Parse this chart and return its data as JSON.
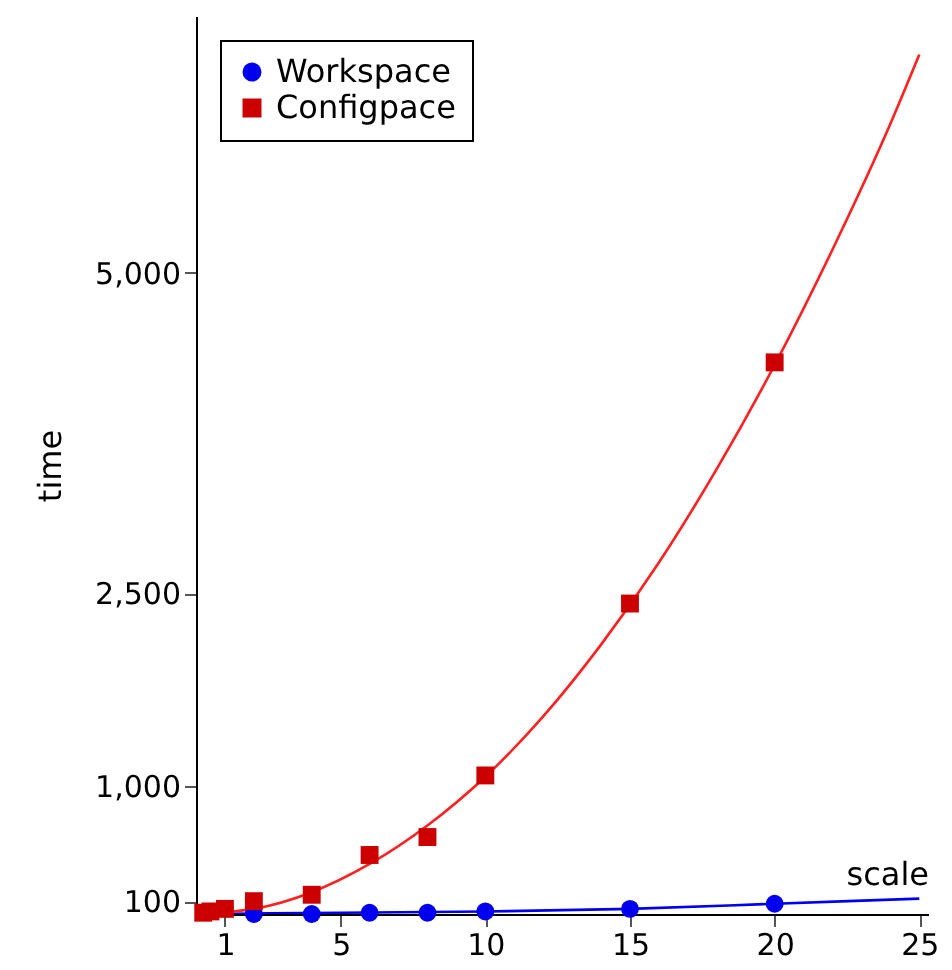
{
  "chart_data": {
    "type": "scatter",
    "xlabel": "scale",
    "ylabel": "time",
    "xlim": [
      0,
      25.3
    ],
    "ylim": [
      0,
      7000
    ],
    "xticks": [
      1,
      5,
      10,
      15,
      20,
      25
    ],
    "yticks": [
      {
        "value": 100,
        "label": "100"
      },
      {
        "value": 1000,
        "label": "1,000"
      },
      {
        "value": 2500,
        "label": "2,500"
      },
      {
        "value": 5000,
        "label": "5,000"
      }
    ],
    "grid": false,
    "legend": "top left",
    "line_style": "solid",
    "series": [
      {
        "name": "Workspace",
        "marker": "circle",
        "color": "#0000ee",
        "x": [
          2,
          4,
          6,
          8,
          10,
          15,
          20
        ],
        "values": [
          0,
          0,
          10,
          10,
          20,
          40,
          80
        ]
      },
      {
        "name": "Configpace",
        "marker": "square",
        "color": "#cc0000",
        "x": [
          0.25,
          0.5,
          1,
          2,
          4,
          6,
          8,
          10,
          15,
          20
        ],
        "values": [
          10,
          20,
          40,
          100,
          150,
          460,
          600,
          1080,
          2420,
          4300
        ]
      },
      {
        "type": "line",
        "color": "#0000ee",
        "x": [
          0,
          5,
          10,
          15,
          20,
          25
        ],
        "values": [
          0,
          10,
          20,
          40,
          80,
          120
        ]
      },
      {
        "type": "line",
        "color": "#ff2020",
        "x": [
          0,
          2,
          4,
          6,
          8,
          10,
          12,
          14,
          16,
          18,
          20,
          22,
          24,
          25
        ],
        "values": [
          0,
          40,
          170,
          390,
          690,
          1070,
          1540,
          2100,
          2740,
          3470,
          4280,
          5180,
          6160,
          6700
        ]
      }
    ]
  }
}
